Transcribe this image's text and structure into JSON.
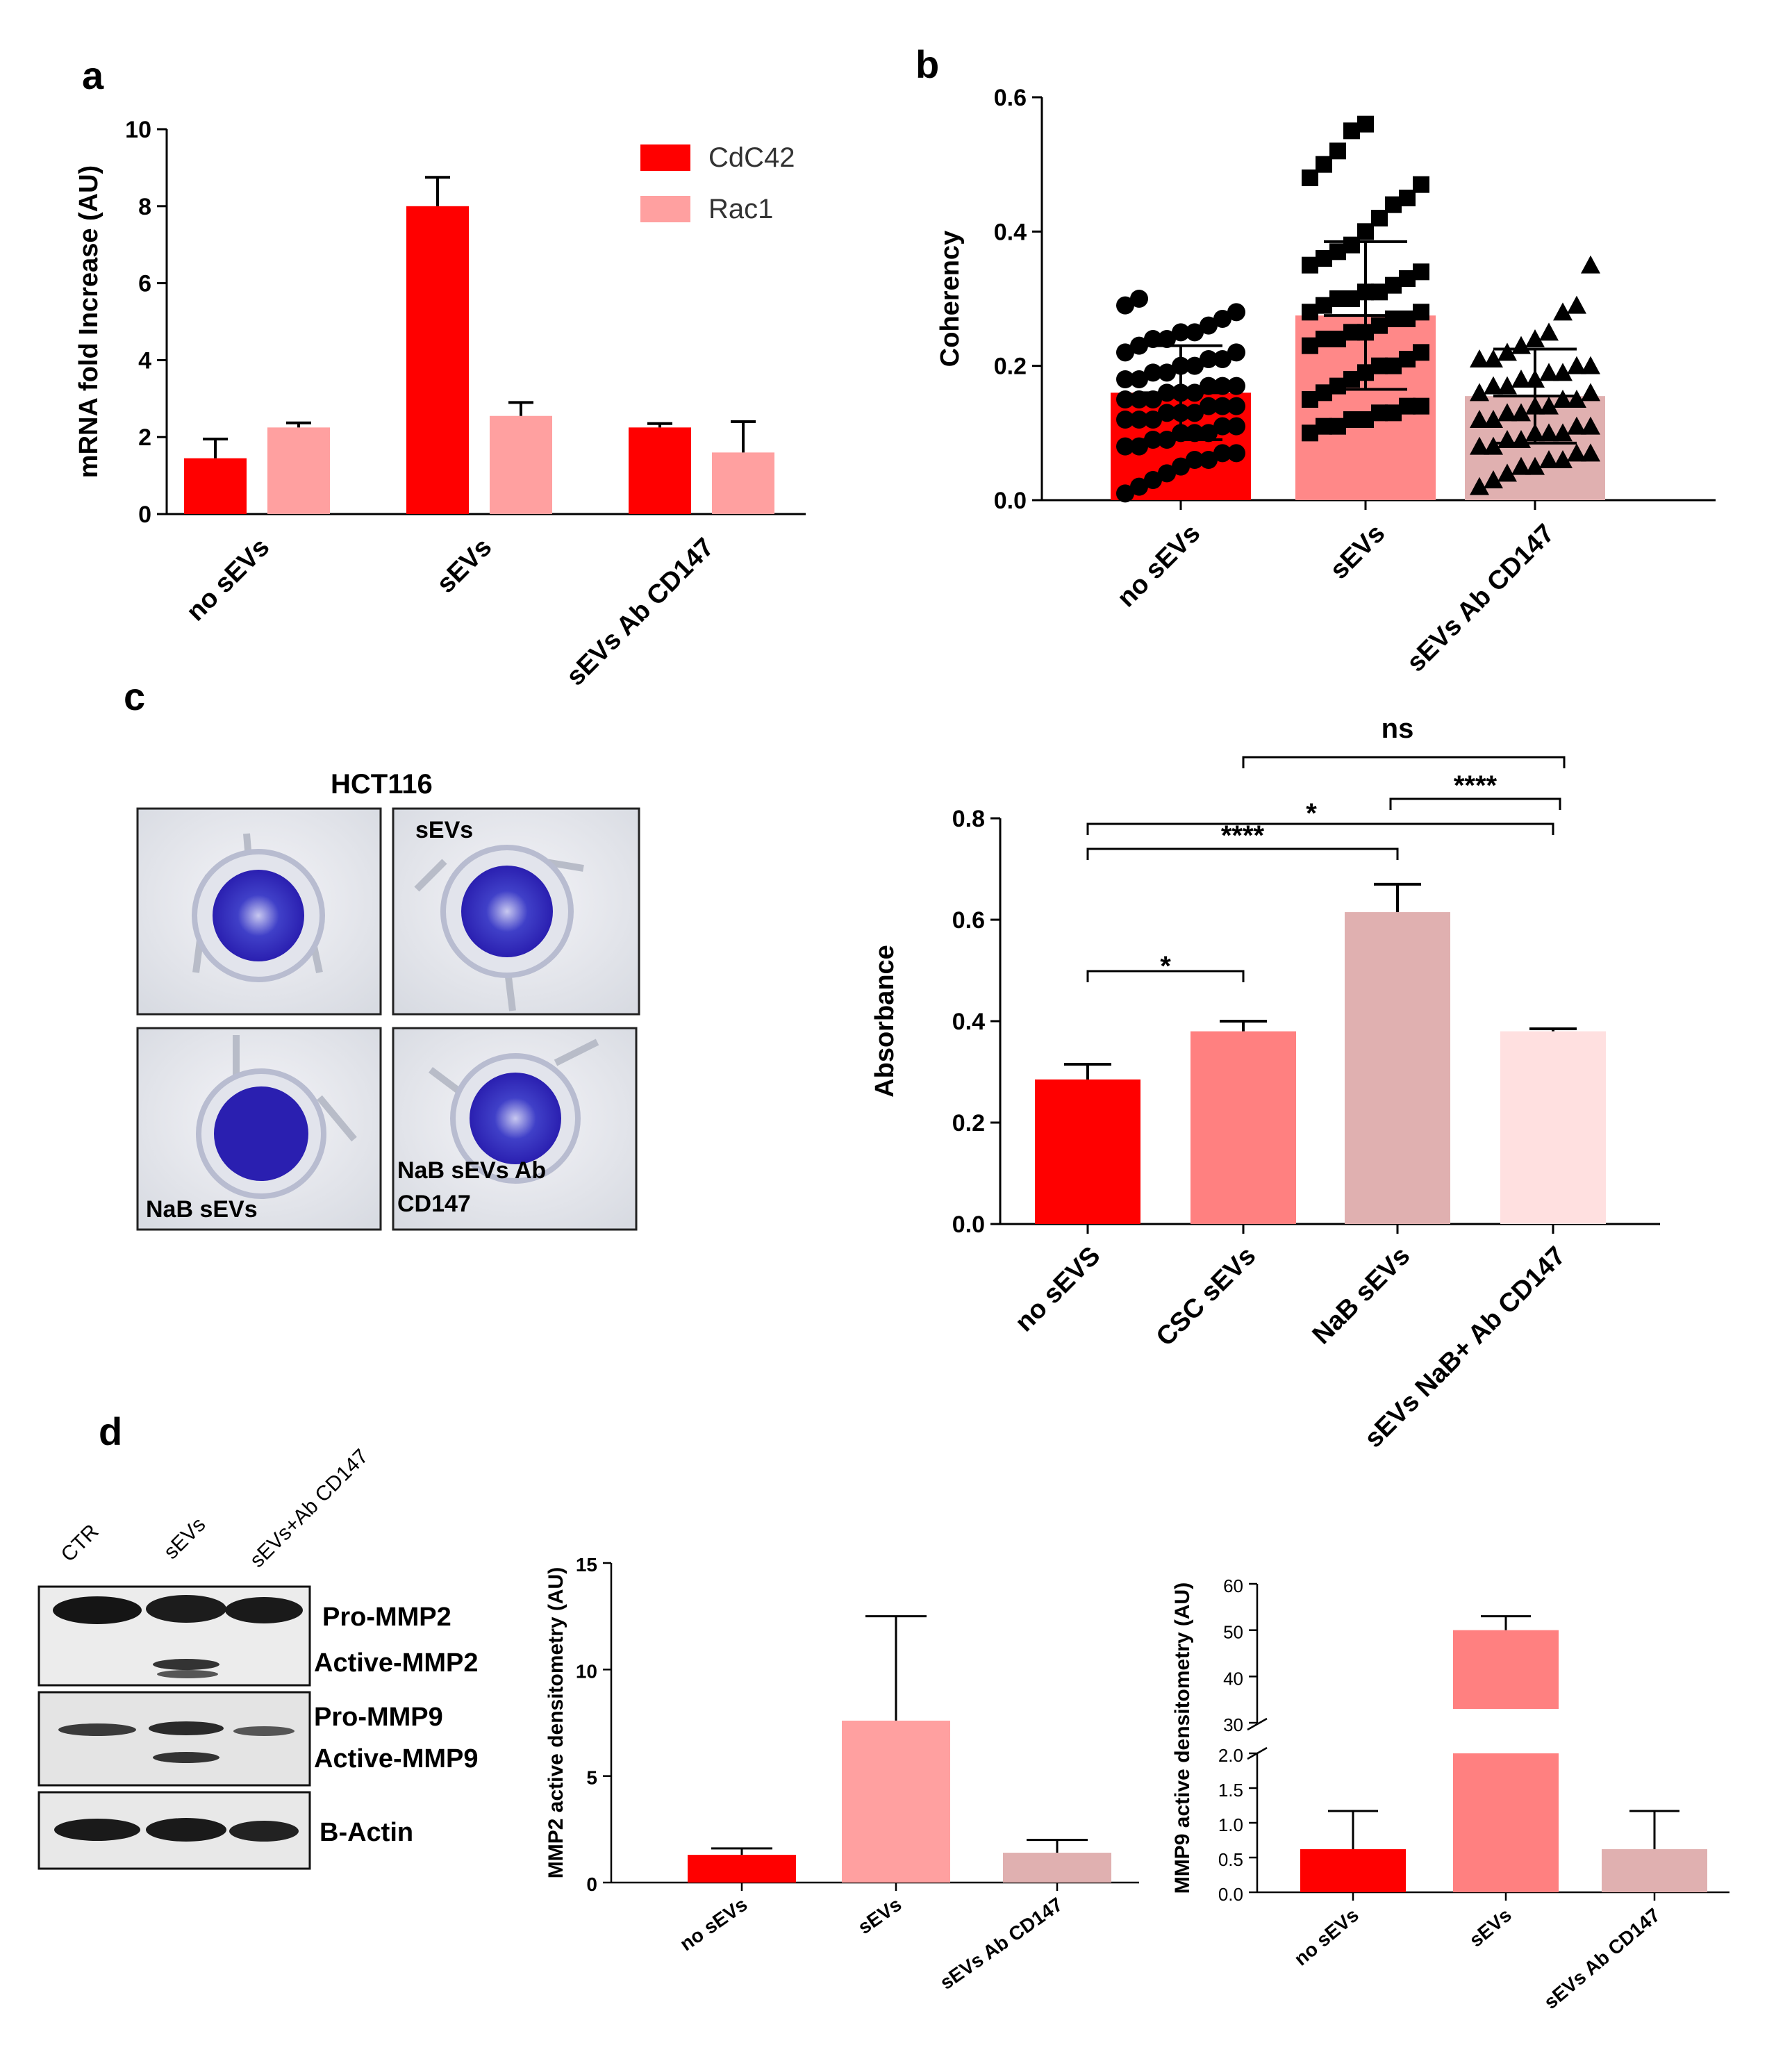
{
  "panels": {
    "a": "a",
    "b": "b",
    "c": "c",
    "d": "d"
  },
  "chart_data": [
    {
      "id": "a",
      "type": "bar",
      "title": "",
      "xlabel": "",
      "ylabel": "mRNA fold Increase (AU)",
      "ylim": [
        0,
        10
      ],
      "yticks": [
        "0",
        "2",
        "4",
        "6",
        "8",
        "10"
      ],
      "categories": [
        "no sEVs",
        "sEVs",
        "sEVs Ab CD147"
      ],
      "series": [
        {
          "name": "CdC42",
          "color": "#ff0000",
          "values": [
            1.45,
            8.0,
            2.25
          ],
          "errors": [
            0.5,
            0.75,
            0.1
          ]
        },
        {
          "name": "Rac1",
          "color": "#ffa0a0",
          "values": [
            2.25,
            2.55,
            1.6
          ],
          "errors": [
            0.12,
            0.35,
            0.8
          ]
        }
      ]
    },
    {
      "id": "b",
      "type": "bar",
      "title": "",
      "xlabel": "",
      "ylabel": "Coherency",
      "ylim": [
        0,
        0.6
      ],
      "yticks": [
        "0.0",
        "0.2",
        "0.4",
        "0.6"
      ],
      "categories": [
        "no sEVs",
        "sEVs",
        "sEVs Ab CD147"
      ],
      "colors": [
        "#ff0000",
        "#ff8888",
        "#e0b0b0"
      ],
      "values": [
        0.16,
        0.275,
        0.155
      ],
      "sd": [
        0.07,
        0.11,
        0.07
      ],
      "points": [
        [
          0.01,
          0.02,
          0.03,
          0.04,
          0.05,
          0.06,
          0.06,
          0.07,
          0.07,
          0.08,
          0.08,
          0.09,
          0.09,
          0.1,
          0.1,
          0.1,
          0.11,
          0.11,
          0.12,
          0.12,
          0.12,
          0.13,
          0.13,
          0.13,
          0.14,
          0.14,
          0.14,
          0.15,
          0.15,
          0.15,
          0.16,
          0.16,
          0.16,
          0.17,
          0.17,
          0.17,
          0.18,
          0.18,
          0.19,
          0.19,
          0.2,
          0.2,
          0.21,
          0.21,
          0.22,
          0.22,
          0.23,
          0.24,
          0.24,
          0.25,
          0.25,
          0.26,
          0.27,
          0.28,
          0.29,
          0.3
        ],
        [
          0.1,
          0.11,
          0.11,
          0.12,
          0.12,
          0.13,
          0.13,
          0.14,
          0.14,
          0.15,
          0.16,
          0.17,
          0.18,
          0.19,
          0.2,
          0.2,
          0.21,
          0.22,
          0.23,
          0.24,
          0.24,
          0.25,
          0.25,
          0.26,
          0.27,
          0.27,
          0.28,
          0.28,
          0.29,
          0.3,
          0.3,
          0.31,
          0.31,
          0.32,
          0.33,
          0.34,
          0.35,
          0.36,
          0.37,
          0.38,
          0.4,
          0.42,
          0.44,
          0.45,
          0.47,
          0.48,
          0.5,
          0.52,
          0.55,
          0.56
        ],
        [
          0.02,
          0.03,
          0.04,
          0.05,
          0.05,
          0.06,
          0.06,
          0.07,
          0.07,
          0.08,
          0.08,
          0.09,
          0.09,
          0.1,
          0.1,
          0.1,
          0.11,
          0.11,
          0.12,
          0.12,
          0.13,
          0.13,
          0.14,
          0.14,
          0.15,
          0.15,
          0.16,
          0.16,
          0.17,
          0.17,
          0.18,
          0.18,
          0.19,
          0.19,
          0.2,
          0.2,
          0.21,
          0.21,
          0.22,
          0.23,
          0.24,
          0.25,
          0.28,
          0.29,
          0.35
        ]
      ]
    },
    {
      "id": "c",
      "type": "bar",
      "title": "",
      "xlabel": "",
      "ylabel": "Absorbance",
      "ylim": [
        0,
        0.8
      ],
      "yticks": [
        "0.0",
        "0.2",
        "0.4",
        "0.6",
        "0.8"
      ],
      "categories": [
        "no sEVS",
        "CSC sEVs",
        "NaB sEVs",
        "sEVs NaB+ Ab CD147"
      ],
      "colors": [
        "#ff0000",
        "#ff8080",
        "#e0b0b0",
        "#ffe0e0"
      ],
      "values": [
        0.285,
        0.38,
        0.615,
        0.38
      ],
      "errors": [
        0.03,
        0.02,
        0.055,
        0.005
      ],
      "annotations": [
        {
          "from": 0,
          "to": 1,
          "label": "*"
        },
        {
          "from": 0,
          "to": 2,
          "label": "****"
        },
        {
          "from": 0,
          "to": 3,
          "label": "*"
        },
        {
          "from": 2,
          "to": 3,
          "label": "****"
        },
        {
          "from": 1,
          "to": 3,
          "label": "ns"
        }
      ]
    },
    {
      "id": "d1",
      "type": "bar",
      "title": "",
      "xlabel": "",
      "ylabel": "MMP2 active densitometry (AU)",
      "ylim": [
        0,
        15
      ],
      "yticks": [
        "0",
        "5",
        "10",
        "15"
      ],
      "categories": [
        "no sEVs",
        "sEVs",
        "sEVs Ab CD147"
      ],
      "colors": [
        "#ff0000",
        "#ffa0a0",
        "#e0b0b0"
      ],
      "values": [
        1.3,
        7.6,
        1.4
      ],
      "errors": [
        0.3,
        4.9,
        0.6
      ]
    },
    {
      "id": "d2",
      "type": "bar",
      "title": "",
      "xlabel": "",
      "ylabel": "MMP9 active densitometry (AU)",
      "ylim_lower": [
        0,
        2.0
      ],
      "ylim_upper": [
        30,
        60
      ],
      "yticks_lower": [
        "0.0",
        "0.5",
        "1.0",
        "1.5",
        "2.0"
      ],
      "yticks_upper": [
        "30",
        "40",
        "50",
        "60"
      ],
      "categories": [
        "no sEVs",
        "sEVs",
        "sEVs Ab CD147"
      ],
      "colors": [
        "#ff0000",
        "#ff8080",
        "#e0b0b0"
      ],
      "values": [
        0.62,
        50,
        0.62
      ],
      "errors": [
        0.55,
        3,
        0.55
      ]
    }
  ],
  "legend_a": [
    "CdC42",
    "Rac1"
  ],
  "wells": {
    "title": "HCT116",
    "labels": [
      "sEVs",
      "NaB sEVs",
      "NaB sEVs Ab",
      "CD147"
    ]
  },
  "blot": {
    "lanes": [
      "CTR",
      "sEVs",
      "sEVs+Ab CD147"
    ],
    "bands": [
      "Pro-MMP2",
      "Active-MMP2",
      "Pro-MMP9",
      "Active-MMP9",
      "B-Actin"
    ]
  }
}
